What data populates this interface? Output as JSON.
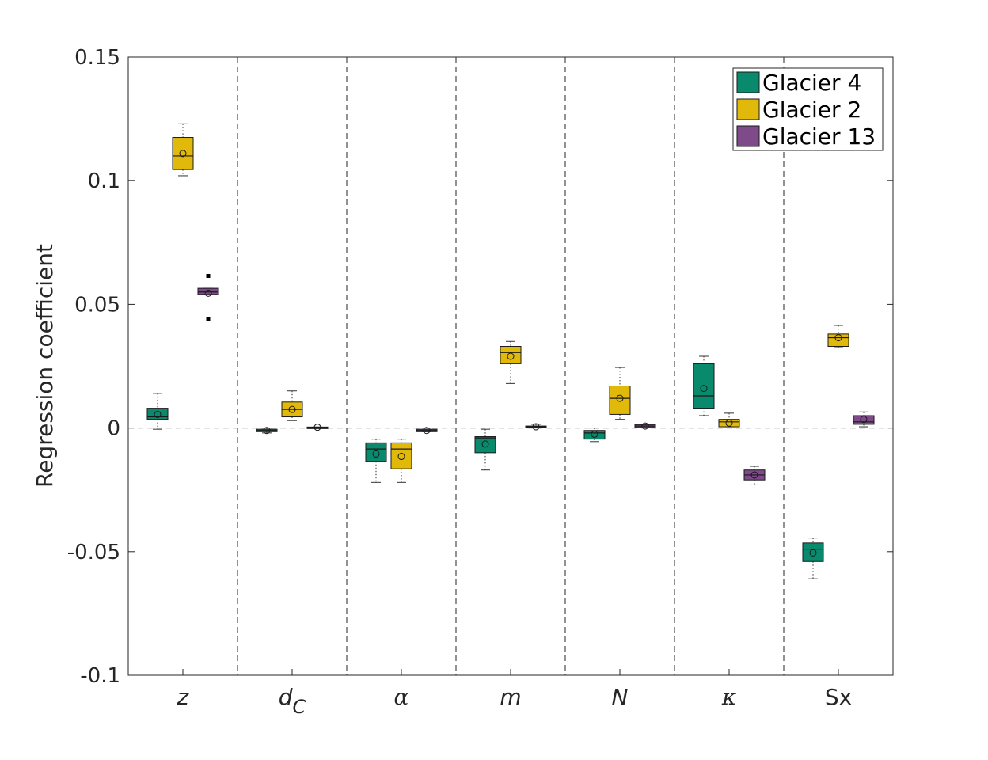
{
  "chart_data": {
    "type": "boxplot",
    "ylabel": "Regression coefficient",
    "ylim": [
      -0.1,
      0.15
    ],
    "yticks": [
      -0.1,
      -0.05,
      0,
      0.05,
      0.1,
      0.15
    ],
    "ytick_labels": [
      "-0.1",
      "-0.05",
      "0",
      "0.05",
      "0.1",
      "0.15"
    ],
    "categories": [
      {
        "label": "z",
        "sub": "",
        "style": "italic"
      },
      {
        "label": "d",
        "sub": "C",
        "style": "italic"
      },
      {
        "label": "α",
        "sub": "",
        "style": "serif-italic"
      },
      {
        "label": "m",
        "sub": "",
        "style": "italic"
      },
      {
        "label": "N",
        "sub": "",
        "style": "italic"
      },
      {
        "label": "κ",
        "sub": "",
        "style": "serif-italic"
      },
      {
        "label": "Sx",
        "sub": "",
        "style": "normal"
      }
    ],
    "grid": "dashed vertical separators between categories, dashed horizontal line at 0",
    "legend_position": "top-right",
    "series": [
      {
        "name": "Glacier 4",
        "color": "#0a8a6c",
        "boxes": [
          {
            "min": -0.0005,
            "q1": 0.0035,
            "median": 0.0045,
            "q3": 0.008,
            "max": 0.014,
            "mean": 0.0055,
            "outliers": []
          },
          {
            "min": -0.002,
            "q1": -0.0015,
            "median": -0.001,
            "q3": -0.0005,
            "max": 0.0,
            "mean": -0.001,
            "outliers": []
          },
          {
            "min": -0.022,
            "q1": -0.0135,
            "median": -0.0085,
            "q3": -0.006,
            "max": -0.0045,
            "mean": -0.0105,
            "outliers": []
          },
          {
            "min": -0.017,
            "q1": -0.01,
            "median": -0.004,
            "q3": -0.0035,
            "max": -0.0005,
            "mean": -0.0065,
            "outliers": []
          },
          {
            "min": -0.0055,
            "q1": -0.0045,
            "median": -0.002,
            "q3": -0.001,
            "max": 0.0,
            "mean": -0.0025,
            "outliers": []
          },
          {
            "min": 0.005,
            "q1": 0.008,
            "median": 0.013,
            "q3": 0.026,
            "max": 0.029,
            "mean": 0.016,
            "outliers": []
          },
          {
            "min": -0.061,
            "q1": -0.054,
            "median": -0.049,
            "q3": -0.0465,
            "max": -0.0445,
            "mean": -0.0505,
            "outliers": []
          }
        ]
      },
      {
        "name": "Glacier 2",
        "color": "#e0b90a",
        "boxes": [
          {
            "min": 0.102,
            "q1": 0.1045,
            "median": 0.11,
            "q3": 0.1175,
            "max": 0.123,
            "mean": 0.111,
            "outliers": []
          },
          {
            "min": 0.003,
            "q1": 0.0045,
            "median": 0.0075,
            "q3": 0.0105,
            "max": 0.015,
            "mean": 0.0075,
            "outliers": []
          },
          {
            "min": -0.022,
            "q1": -0.0165,
            "median": -0.0085,
            "q3": -0.006,
            "max": -0.0045,
            "mean": -0.0115,
            "outliers": []
          },
          {
            "min": 0.018,
            "q1": 0.026,
            "median": 0.0305,
            "q3": 0.033,
            "max": 0.035,
            "mean": 0.029,
            "outliers": []
          },
          {
            "min": 0.0035,
            "q1": 0.0055,
            "median": 0.012,
            "q3": 0.017,
            "max": 0.0245,
            "mean": 0.012,
            "outliers": []
          },
          {
            "min": 0.0005,
            "q1": 0.0005,
            "median": 0.0025,
            "q3": 0.0035,
            "max": 0.006,
            "mean": 0.002,
            "outliers": []
          },
          {
            "min": 0.0325,
            "q1": 0.033,
            "median": 0.0365,
            "q3": 0.038,
            "max": 0.0415,
            "mean": 0.0365,
            "outliers": []
          }
        ]
      },
      {
        "name": "Glacier 13",
        "color": "#7e4a8a",
        "boxes": [
          {
            "min": 0.054,
            "q1": 0.054,
            "median": 0.055,
            "q3": 0.0565,
            "max": 0.0565,
            "mean": 0.0545,
            "outliers": [
              0.0615,
              0.044
            ]
          },
          {
            "min": 0.0002,
            "q1": 0.0002,
            "median": 0.0003,
            "q3": 0.0004,
            "max": 0.0004,
            "mean": 0.0003,
            "outliers": []
          },
          {
            "min": -0.0015,
            "q1": -0.0015,
            "median": -0.001,
            "q3": -0.0005,
            "max": -0.0005,
            "mean": -0.001,
            "outliers": []
          },
          {
            "min": 0.0,
            "q1": 0.0002,
            "median": 0.0005,
            "q3": 0.0008,
            "max": 0.0015,
            "mean": 0.0005,
            "outliers": []
          },
          {
            "min": 0.0002,
            "q1": 0.0002,
            "median": 0.0008,
            "q3": 0.0014,
            "max": 0.0015,
            "mean": 0.0008,
            "outliers": []
          },
          {
            "min": -0.023,
            "q1": -0.021,
            "median": -0.019,
            "q3": -0.017,
            "max": -0.0155,
            "mean": -0.019,
            "outliers": []
          },
          {
            "min": 0.0005,
            "q1": 0.0015,
            "median": 0.0025,
            "q3": 0.005,
            "max": 0.0065,
            "mean": 0.0035,
            "outliers": []
          }
        ]
      }
    ]
  }
}
